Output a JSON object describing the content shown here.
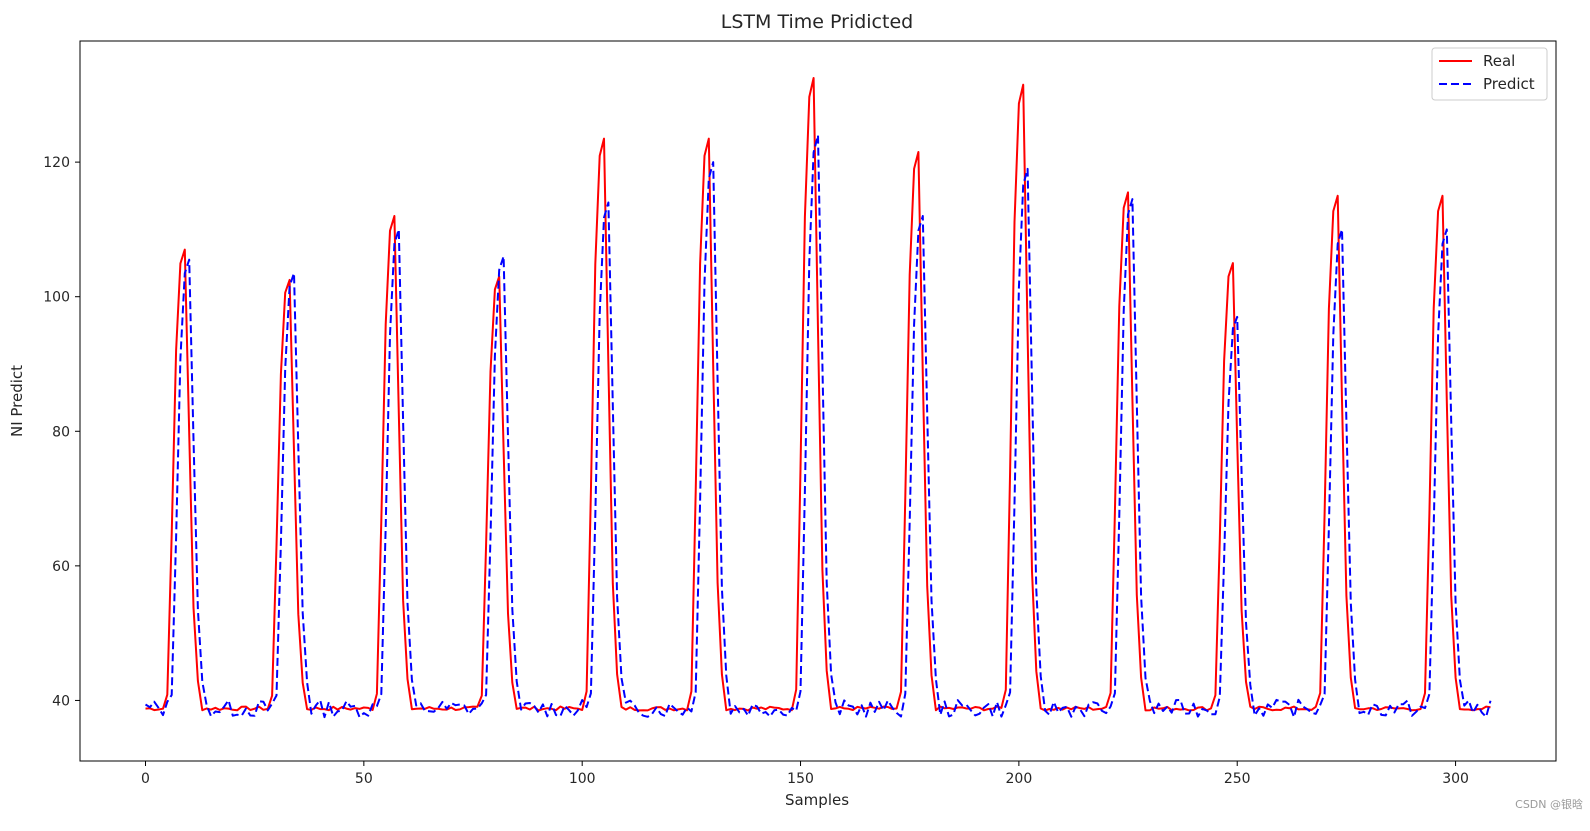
{
  "chart_data": {
    "type": "line",
    "title": "LSTM Time Pridicted",
    "xlabel": "Samples",
    "ylabel": "NI Predict",
    "xlim": [
      -15,
      323
    ],
    "ylim": [
      31,
      138
    ],
    "xticks": [
      0,
      50,
      100,
      150,
      200,
      250,
      300
    ],
    "yticks": [
      40,
      60,
      80,
      100,
      120
    ],
    "grid": false,
    "legend_position": "top-right",
    "peaks": [
      9,
      33,
      57,
      81,
      105,
      129,
      153,
      177,
      201,
      225,
      249,
      273,
      297
    ],
    "baseline": 38.8,
    "series": [
      {
        "name": "Real",
        "color": "#ff0000",
        "style": "solid",
        "peak_values": [
          107,
          102.5,
          112,
          103,
          123.5,
          123.5,
          132.5,
          121.5,
          131.5,
          115.5,
          105,
          115,
          115
        ]
      },
      {
        "name": "Predict",
        "color": "#0000ff",
        "style": "dashed",
        "peak_values": [
          105.5,
          103.5,
          110,
          106,
          114,
          120,
          124,
          112,
          119,
          114.5,
          97,
          110,
          110
        ]
      }
    ]
  },
  "watermark": "CSDN @银晗"
}
